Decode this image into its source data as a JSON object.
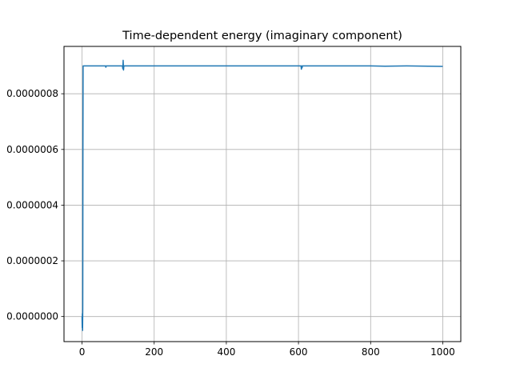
{
  "chart_data": {
    "type": "line",
    "title": "Time-dependent energy (imaginary component)",
    "xlabel": "",
    "ylabel": "",
    "xlim": [
      -50,
      1050
    ],
    "ylim": [
      -9e-08,
      9.7e-07
    ],
    "grid": true,
    "x_ticks": [
      0,
      200,
      400,
      600,
      800,
      1000
    ],
    "x_tick_labels": [
      "0",
      "200",
      "400",
      "600",
      "800",
      "1000"
    ],
    "y_ticks": [
      0.0,
      2e-07,
      4e-07,
      6e-07,
      8e-07
    ],
    "y_tick_labels": [
      "0.0000000",
      "0.0000002",
      "0.0000004",
      "0.0000006",
      "0.0000008"
    ],
    "series_color": "#1f77b4",
    "series": [
      {
        "x": [
          0,
          0.5,
          1,
          1.5,
          2,
          2.5,
          3,
          4,
          6,
          10,
          30,
          60,
          65,
          66,
          67,
          100,
          112,
          113,
          114,
          115,
          116,
          117,
          130,
          200,
          300,
          400,
          500,
          600,
          607,
          608,
          609,
          610,
          611,
          650,
          700,
          800,
          840,
          900,
          1000
        ],
        "y": [
          0.0,
          -4e-08,
          1e-08,
          -5e-08,
          3e-08,
          6e-07,
          9e-07,
          9e-07,
          9e-07,
          9e-07,
          9e-07,
          9e-07,
          9e-07,
          8.95e-07,
          9e-07,
          9e-07,
          9e-07,
          8.9e-07,
          9.2e-07,
          8.85e-07,
          9e-07,
          9e-07,
          9e-07,
          9e-07,
          9e-07,
          9e-07,
          9e-07,
          9e-07,
          9e-07,
          8.88e-07,
          9e-07,
          8.93e-07,
          9e-07,
          9e-07,
          9e-07,
          9e-07,
          8.99e-07,
          9e-07,
          8.98e-07
        ]
      }
    ]
  }
}
